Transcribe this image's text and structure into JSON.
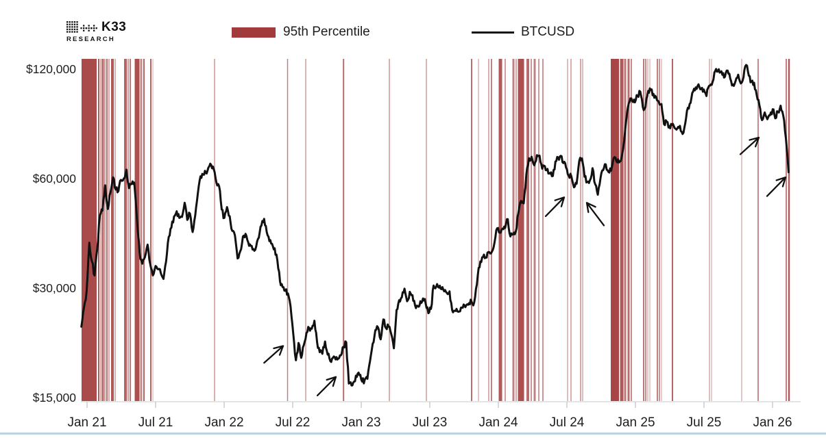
{
  "brand": {
    "name": "K33",
    "sub": "RESEARCH"
  },
  "legend": [
    {
      "label": "95th Percentile",
      "type": "band",
      "color": "#A23C3C"
    },
    {
      "label": "BTCUSD",
      "type": "line",
      "color": "#111111"
    }
  ],
  "colors": {
    "event_red": "#A23C3C",
    "price_line": "#111111",
    "axis_line": "#DBDBDB",
    "tick": "#CFCFCF",
    "label_text": "#1D1D1D",
    "bottom_strip": "#BAD3E0"
  },
  "chart_data": {
    "type": "line",
    "title": "",
    "xlabel": "",
    "ylabel": "",
    "y_axis": {
      "scale": "log2",
      "ticks": [
        {
          "value": 120000,
          "label": "$120,000"
        },
        {
          "value": 60000,
          "label": "$60,000"
        },
        {
          "value": 30000,
          "label": "$30,000"
        },
        {
          "value": 15000,
          "label": "$15,000"
        }
      ]
    },
    "x_axis": {
      "unit": "months_since_jan_2021",
      "ticks": [
        {
          "label": "Jan 21",
          "t": 0
        },
        {
          "label": "Jul 21",
          "t": 6
        },
        {
          "label": "Jan 22",
          "t": 12
        },
        {
          "label": "Jul 22",
          "t": 18
        },
        {
          "label": "Jan 23",
          "t": 24
        },
        {
          "label": "Jul 23",
          "t": 30
        },
        {
          "label": "Jan 24",
          "t": 36
        },
        {
          "label": "Jul 24",
          "t": 42
        },
        {
          "label": "Jan 25",
          "t": 48
        },
        {
          "label": "Jul 25",
          "t": 54
        },
        {
          "label": "Jan 26",
          "t": 60
        }
      ]
    },
    "series": [
      {
        "name": "BTCUSD",
        "unit": "USD",
        "t0_months": -0.5,
        "t_end_months": 61.4,
        "prices": [
          23500,
          26500,
          29500,
          40000,
          35500,
          32500,
          38500,
          47500,
          49000,
          57500,
          49500,
          55000,
          60500,
          56000,
          55500,
          59500,
          60000,
          63500,
          56500,
          58000,
          58500,
          46500,
          37500,
          35000,
          36500,
          39500,
          35000,
          32500,
          34500,
          33800,
          33000,
          31800,
          35500,
          41500,
          44000,
          47200,
          48800,
          46800,
          47100,
          51500,
          46200,
          48100,
          42800,
          47500,
          54800,
          60900,
          61500,
          62200,
          64400,
          65500,
          63600,
          58500,
          57200,
          49300,
          46800,
          50100,
          47300,
          43100,
          41800,
          36200,
          37900,
          41600,
          42300,
          40100,
          39200,
          38400,
          39000,
          41300,
          44600,
          46500,
          42800,
          40400,
          39700,
          38600,
          35800,
          31300,
          30200,
          29500,
          29000,
          26700,
          22500,
          19000,
          21200,
          19300,
          20900,
          22600,
          23300,
          23200,
          24400,
          21300,
          20000,
          19800,
          21400,
          19700,
          18900,
          19300,
          19100,
          19200,
          19600,
          20700,
          21300,
          16400,
          16200,
          16600,
          17100,
          17300,
          16600,
          16800,
          16900,
          18900,
          21100,
          23000,
          23400,
          21700,
          24600,
          23300,
          23500,
          22400,
          20500,
          26100,
          27800,
          28300,
          29900,
          27600,
          29300,
          28700,
          26900,
          26800,
          27600,
          28100,
          27200,
          25600,
          26300,
          30500,
          30300,
          30100,
          29800,
          29400,
          29100,
          29400,
          26100,
          26000,
          25900,
          25900,
          26500,
          26600,
          27000,
          27900,
          26900,
          29900,
          34100,
          35400,
          37100,
          36400,
          37700,
          37800,
          40100,
          43800,
          42600,
          43700,
          43900,
          46400,
          41600,
          42100,
          42900,
          48200,
          52100,
          51300,
          61500,
          68300,
          68900,
          65300,
          69600,
          69400,
          63900,
          64900,
          63800,
          61900,
          61000,
          66900,
          68600,
          69300,
          66200,
          64300,
          61100,
          60900,
          56800,
          58100,
          67200,
          68200,
          60700,
          58700,
          59400,
          64100,
          57900,
          54200,
          60100,
          63300,
          65700,
          62600,
          63100,
          68400,
          67000,
          66500,
          68800,
          76600,
          90100,
          97700,
          97900,
          97200,
          101400,
          104100,
          94300,
          94400,
          104500,
          105100,
          102600,
          100600,
          97600,
          96200,
          84700,
          86100,
          83700,
          84300,
          82600,
          82400,
          83800,
          79600,
          85200,
          94000,
          96900,
          104200,
          106900,
          109000,
          105700,
          105500,
          101200,
          107900,
          108600,
          117500,
          118100,
          117400,
          115800,
          114300,
          118900,
          113100,
          108900,
          111300,
          115800,
          109600,
          114100,
          123200,
          115100,
          110900,
          110100,
          101600,
          95600,
          86900,
          91200,
          87400,
          89600,
          93100,
          87900,
          91500,
          95200,
          89500,
          77500,
          62500
        ]
      }
    ],
    "events_95th_percentile": [
      {
        "t": 0.18,
        "w": 22,
        "o": 0.92
      },
      {
        "t": 1.02,
        "w": 2,
        "o": 0.85
      },
      {
        "t": 1.2,
        "w": 2,
        "o": 0.4
      },
      {
        "t": 1.38,
        "w": 3,
        "o": 0.8
      },
      {
        "t": 1.56,
        "w": 2,
        "o": 0.5
      },
      {
        "t": 1.74,
        "w": 2,
        "o": 0.75
      },
      {
        "t": 1.92,
        "w": 2,
        "o": 0.45
      },
      {
        "t": 2.22,
        "w": 4,
        "o": 0.85
      },
      {
        "t": 2.46,
        "w": 2,
        "o": 0.4
      },
      {
        "t": 3.36,
        "w": 4,
        "o": 0.8
      },
      {
        "t": 3.6,
        "w": 2,
        "o": 0.5
      },
      {
        "t": 3.78,
        "w": 2,
        "o": 0.7
      },
      {
        "t": 4.38,
        "w": 7,
        "o": 0.9
      },
      {
        "t": 4.74,
        "w": 3,
        "o": 0.6
      },
      {
        "t": 4.98,
        "w": 2,
        "o": 0.8
      },
      {
        "t": 5.58,
        "w": 2,
        "o": 0.8
      },
      {
        "t": 5.76,
        "w": 1.5,
        "o": 0.3
      },
      {
        "t": 11.16,
        "w": 1.5,
        "o": 0.55
      },
      {
        "t": 17.55,
        "w": 1.5,
        "o": 0.65
      },
      {
        "t": 19.14,
        "w": 1.5,
        "o": 0.5
      },
      {
        "t": 22.45,
        "w": 2,
        "o": 0.75
      },
      {
        "t": 26.46,
        "w": 1.5,
        "o": 0.55
      },
      {
        "t": 29.7,
        "w": 1.5,
        "o": 0.5
      },
      {
        "t": 33.66,
        "w": 2,
        "o": 0.75
      },
      {
        "t": 34.26,
        "w": 1.5,
        "o": 0.4
      },
      {
        "t": 35.16,
        "w": 1.5,
        "o": 0.55
      },
      {
        "t": 35.4,
        "w": 2,
        "o": 0.65
      },
      {
        "t": 36.18,
        "w": 5,
        "o": 0.85
      },
      {
        "t": 36.6,
        "w": 2,
        "o": 0.5
      },
      {
        "t": 37.32,
        "w": 3,
        "o": 0.65
      },
      {
        "t": 37.56,
        "w": 2,
        "o": 0.45
      },
      {
        "t": 37.98,
        "w": 9,
        "o": 0.9
      },
      {
        "t": 38.58,
        "w": 4,
        "o": 0.75
      },
      {
        "t": 38.88,
        "w": 2,
        "o": 0.55
      },
      {
        "t": 39.18,
        "w": 3,
        "o": 0.65
      },
      {
        "t": 39.54,
        "w": 2,
        "o": 0.5
      },
      {
        "t": 39.9,
        "w": 2,
        "o": 0.55
      },
      {
        "t": 42.06,
        "w": 1.5,
        "o": 0.45
      },
      {
        "t": 42.36,
        "w": 1.5,
        "o": 0.55
      },
      {
        "t": 43.2,
        "w": 1.5,
        "o": 0.6
      },
      {
        "t": 43.38,
        "w": 1.5,
        "o": 0.45
      },
      {
        "t": 46.2,
        "w": 12,
        "o": 0.95
      },
      {
        "t": 46.8,
        "w": 5,
        "o": 0.85
      },
      {
        "t": 47.1,
        "w": 3,
        "o": 0.7
      },
      {
        "t": 47.4,
        "w": 3,
        "o": 0.75
      },
      {
        "t": 47.64,
        "w": 2,
        "o": 0.6
      },
      {
        "t": 48.72,
        "w": 2,
        "o": 0.7
      },
      {
        "t": 48.9,
        "w": 2,
        "o": 0.6
      },
      {
        "t": 49.08,
        "w": 1.5,
        "o": 0.4
      },
      {
        "t": 49.26,
        "w": 1.5,
        "o": 0.35
      },
      {
        "t": 49.92,
        "w": 2,
        "o": 0.65
      },
      {
        "t": 50.1,
        "w": 2,
        "o": 0.55
      },
      {
        "t": 50.28,
        "w": 1.5,
        "o": 0.35
      },
      {
        "t": 51.24,
        "w": 2,
        "o": 0.8
      },
      {
        "t": 54.48,
        "w": 1.5,
        "o": 0.45
      },
      {
        "t": 54.66,
        "w": 1.5,
        "o": 0.35
      },
      {
        "t": 57.3,
        "w": 1.5,
        "o": 0.4
      },
      {
        "t": 58.74,
        "w": 2,
        "o": 0.6
      },
      {
        "t": 61.2,
        "w": 2,
        "o": 0.65
      },
      {
        "t": 61.44,
        "w": 2.5,
        "o": 0.85
      }
    ],
    "annotations": {
      "arrows": [
        {
          "tail": {
            "t": 15.5,
            "price": 18700
          },
          "tip": {
            "t": 17.16,
            "price": 20800
          }
        },
        {
          "tail": {
            "t": 20.16,
            "price": 15200
          },
          "tip": {
            "t": 21.78,
            "price": 17100
          }
        },
        {
          "tail": {
            "t": 40.14,
            "price": 47300
          },
          "tip": {
            "t": 41.76,
            "price": 53300
          }
        },
        {
          "tail": {
            "t": 45.24,
            "price": 44600
          },
          "tip": {
            "t": 43.74,
            "price": 51500
          }
        },
        {
          "tail": {
            "t": 57.18,
            "price": 70000
          },
          "tip": {
            "t": 58.8,
            "price": 77800
          }
        },
        {
          "tail": {
            "t": 59.52,
            "price": 53700
          },
          "tip": {
            "t": 61.14,
            "price": 60500
          }
        }
      ]
    }
  }
}
